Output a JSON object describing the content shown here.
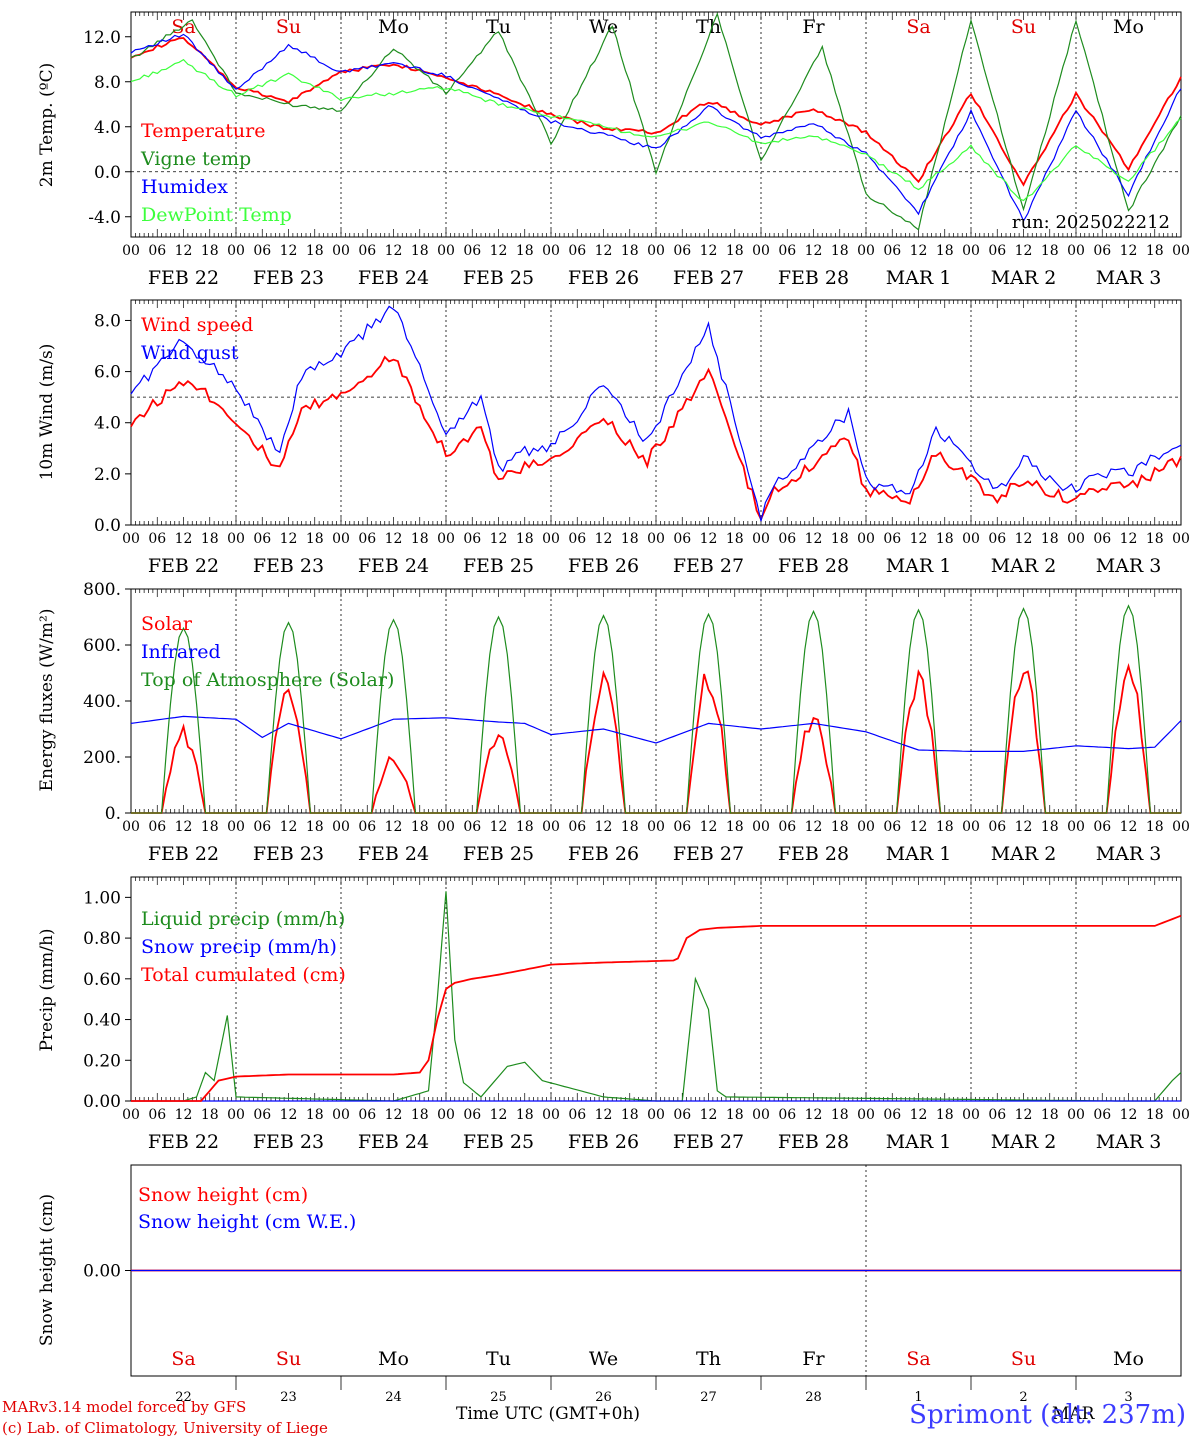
{
  "x_axis": {
    "hour_labels": [
      "00",
      "06",
      "12",
      "18"
    ],
    "end_label": "00",
    "day_labels": [
      "FEB 22",
      "FEB 23",
      "FEB 24",
      "FEB 25",
      "FEB 26",
      "FEB 27",
      "FEB 28",
      "MAR 1",
      "MAR 2",
      "MAR 3"
    ],
    "weekdays": [
      "Sa",
      "Su",
      "Mo",
      "Tu",
      "We",
      "Th",
      "Fr",
      "Sa",
      "Su",
      "Mo"
    ],
    "weekday_colors": [
      "#e00000",
      "#e00000",
      "#000000",
      "#000000",
      "#000000",
      "#000000",
      "#000000",
      "#e00000",
      "#e00000",
      "#000000"
    ],
    "day_numbers": [
      "22",
      "23",
      "24",
      "25",
      "26",
      "27",
      "28",
      "1",
      "2",
      "3"
    ]
  },
  "colors": {
    "red": "#ff0000",
    "darkgreen": "#1e8c1e",
    "blue": "#0000ff",
    "lightgreen": "#3cff3c"
  },
  "chart_data": [
    {
      "id": "temp",
      "type": "line",
      "ylabel": "2m Temp. (ºC)",
      "yticks": [
        "12.0",
        "8.0",
        "4.0",
        "0.0",
        "-4.0"
      ],
      "ylim": [
        -5.8,
        14.2
      ],
      "dashed_y": 0,
      "annotation": "run: 2025022212",
      "series": [
        {
          "name": "Temperature",
          "color": "red",
          "x_hours": [
            0,
            12,
            24,
            36,
            48,
            60,
            72,
            84,
            96,
            108,
            120,
            132,
            144,
            156,
            168,
            180,
            192,
            204,
            216,
            228,
            240
          ],
          "values": [
            10.3,
            11.9,
            7.5,
            6.2,
            8.9,
            9.6,
            8.4,
            6.9,
            5.0,
            3.9,
            3.5,
            6.3,
            4.2,
            5.6,
            3.5,
            -0.8,
            7.0,
            -1.2,
            6.9,
            0.3,
            8.4
          ]
        },
        {
          "name": "Vigne temp",
          "color": "darkgreen",
          "x_hours": [
            0,
            14,
            24,
            36,
            48,
            60,
            72,
            84,
            96,
            110,
            120,
            134,
            144,
            158,
            168,
            180,
            192,
            204,
            216,
            228,
            240
          ],
          "values": [
            10.0,
            13.5,
            7.0,
            6.0,
            5.5,
            11.0,
            7.0,
            12.5,
            2.5,
            13.0,
            0.0,
            14.0,
            1.0,
            11.0,
            -2.0,
            -5.0,
            13.5,
            -3.5,
            13.5,
            -3.5,
            5.0
          ]
        },
        {
          "name": "Humidex",
          "color": "blue",
          "x_hours": [
            0,
            12,
            24,
            36,
            48,
            60,
            72,
            84,
            96,
            108,
            120,
            132,
            144,
            156,
            168,
            180,
            192,
            204,
            216,
            228,
            240
          ],
          "values": [
            10.7,
            12.2,
            7.2,
            11.3,
            8.8,
            9.7,
            8.5,
            6.5,
            4.5,
            3.3,
            2.0,
            5.8,
            3.0,
            4.3,
            1.6,
            -3.6,
            5.3,
            -4.4,
            5.4,
            -2.0,
            7.5
          ]
        },
        {
          "name": "DewPoint Temp",
          "color": "lightgreen",
          "x_hours": [
            0,
            12,
            24,
            36,
            48,
            60,
            72,
            84,
            96,
            108,
            120,
            132,
            144,
            156,
            168,
            180,
            192,
            204,
            216,
            228,
            240
          ],
          "values": [
            8.0,
            9.8,
            6.8,
            8.6,
            6.5,
            7.0,
            7.5,
            6.0,
            5.0,
            4.0,
            3.0,
            4.5,
            2.5,
            3.2,
            1.5,
            -1.5,
            2.2,
            -2.7,
            2.3,
            -0.8,
            4.8
          ]
        }
      ]
    },
    {
      "id": "wind",
      "type": "line",
      "ylabel": "10m Wind (m/s)",
      "yticks": [
        "8.0",
        "6.0",
        "4.0",
        "2.0",
        "0.0"
      ],
      "ylim": [
        0,
        8.8
      ],
      "dashed_y": 5.0,
      "series": [
        {
          "name": "Wind speed",
          "color": "red",
          "x_hours": [
            0,
            13,
            24,
            34,
            39,
            47,
            60,
            72,
            80,
            84,
            90,
            96,
            108,
            118,
            132,
            144,
            147,
            164,
            168,
            178,
            184,
            198,
            204,
            214,
            222,
            228,
            240
          ],
          "values": [
            4.0,
            5.8,
            4.1,
            2.1,
            4.5,
            5.0,
            6.6,
            2.8,
            3.8,
            1.7,
            2.3,
            2.4,
            4.2,
            2.5,
            6.0,
            0.2,
            1.3,
            3.4,
            1.3,
            1.0,
            2.8,
            1.0,
            1.8,
            1.0,
            1.5,
            1.5,
            2.6
          ]
        },
        {
          "name": "Wind gust",
          "color": "blue",
          "x_hours": [
            0,
            12,
            24,
            34,
            39,
            47,
            60,
            72,
            80,
            84,
            90,
            96,
            108,
            118,
            132,
            144,
            147,
            164,
            168,
            178,
            184,
            198,
            204,
            214,
            222,
            228,
            240
          ],
          "values": [
            5.2,
            7.2,
            5.4,
            2.7,
            5.9,
            6.5,
            8.6,
            3.6,
            5.0,
            2.2,
            2.9,
            3.0,
            5.5,
            3.2,
            7.8,
            0.3,
            1.6,
            4.4,
            1.7,
            1.2,
            3.8,
            1.3,
            2.6,
            1.3,
            2.0,
            2.0,
            3.3
          ]
        }
      ]
    },
    {
      "id": "flux",
      "type": "line",
      "ylabel": "Energy fluxes (W/m²)",
      "yticks": [
        "800.",
        "600.",
        "400.",
        "200.",
        "0."
      ],
      "ylim": [
        0,
        800
      ],
      "series": [
        {
          "name": "Solar",
          "color": "red",
          "peaks": [
            310,
            480,
            210,
            310,
            510,
            525,
            365,
            535,
            545,
            535
          ]
        },
        {
          "name": "Infrared",
          "color": "blue",
          "x_hours": [
            0,
            12,
            24,
            30,
            36,
            48,
            60,
            72,
            84,
            90,
            96,
            108,
            120,
            132,
            144,
            156,
            168,
            180,
            192,
            204,
            216,
            228,
            234,
            240
          ],
          "values": [
            320,
            345,
            335,
            270,
            320,
            265,
            335,
            340,
            325,
            320,
            280,
            300,
            250,
            320,
            300,
            320,
            290,
            225,
            220,
            220,
            240,
            230,
            235,
            330
          ]
        },
        {
          "name": "Top of Atmosphere (Solar)",
          "color": "darkgreen",
          "peaks": [
            660,
            680,
            690,
            700,
            705,
            710,
            720,
            725,
            730,
            740
          ]
        }
      ]
    },
    {
      "id": "precip",
      "type": "line",
      "ylabel": "Precip (mm/h)",
      "yticks": [
        "1.00",
        "0.80",
        "0.60",
        "0.40",
        "0.20",
        "0.00"
      ],
      "ylim": [
        0,
        1.1
      ],
      "series": [
        {
          "name": "Liquid precip (mm/h)",
          "color": "darkgreen",
          "x_hours": [
            0,
            12,
            15,
            17,
            19,
            22,
            24,
            60,
            68,
            70,
            72,
            74,
            76,
            80,
            86,
            90,
            94,
            108,
            120,
            126,
            129,
            132,
            134,
            136,
            226,
            234,
            238,
            240
          ],
          "values": [
            0,
            0,
            0.02,
            0.14,
            0.1,
            0.42,
            0.02,
            0,
            0.05,
            0.5,
            1.03,
            0.3,
            0.09,
            0.02,
            0.17,
            0.19,
            0.1,
            0.02,
            0,
            0,
            0.6,
            0.45,
            0.05,
            0.02,
            0,
            0,
            0.1,
            0.14
          ]
        },
        {
          "name": "Snow precip (mm/h)",
          "color": "blue",
          "x_hours": [
            0,
            240
          ],
          "values": [
            0,
            0
          ]
        },
        {
          "name": "Total cumulated (cm)",
          "color": "red",
          "x_hours": [
            0,
            16,
            20,
            24,
            36,
            60,
            66,
            68,
            70,
            72,
            74,
            78,
            84,
            96,
            108,
            124,
            125,
            127,
            130,
            134,
            144,
            180,
            228,
            234,
            240
          ],
          "values": [
            0,
            0,
            0.1,
            0.12,
            0.13,
            0.13,
            0.14,
            0.2,
            0.4,
            0.55,
            0.58,
            0.6,
            0.62,
            0.67,
            0.68,
            0.69,
            0.7,
            0.8,
            0.84,
            0.85,
            0.86,
            0.86,
            0.86,
            0.86,
            0.91
          ]
        }
      ]
    },
    {
      "id": "snow",
      "type": "line",
      "ylabel": "Snow height (cm)",
      "yticks": [
        "0.00"
      ],
      "ylim": [
        -1,
        1
      ],
      "series": [
        {
          "name": "Snow height (cm)",
          "color": "red",
          "x_hours": [
            0,
            240
          ],
          "values": [
            0,
            0
          ]
        },
        {
          "name": "Snow height (cm W.E.)",
          "color": "blue",
          "x_hours": [
            0,
            240
          ],
          "values": [
            0,
            0
          ]
        }
      ]
    }
  ],
  "footer": {
    "model": "MARv3.14 model forced by GFS",
    "lab": "(c) Lab. of Climatology, University of Liege",
    "xlabel": "Time UTC (GMT+0h)",
    "month": "MAR",
    "site": "Sprimont (alt: 237m)"
  }
}
